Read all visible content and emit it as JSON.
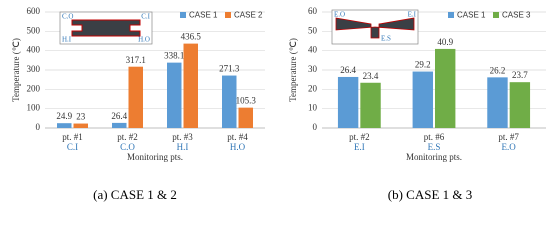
{
  "chart_data": [
    {
      "type": "bar",
      "caption": "(a)  CASE  1  &  2",
      "ylabel": "Temperature (℃)",
      "xlabel": "Monitoring pts.",
      "categories": [
        "pt. #1",
        "pt. #2",
        "pt. #3",
        "pt. #4"
      ],
      "sublabels": [
        "C.I",
        "C.O",
        "H.I",
        "H.O"
      ],
      "inset_labels": [
        "C.O",
        "C.I",
        "H.I",
        "H.O"
      ],
      "series": [
        {
          "name": "CASE 1",
          "color": "#5b9bd5",
          "values": [
            24.9,
            26.4,
            338.1,
            271.3
          ]
        },
        {
          "name": "CASE 2",
          "color": "#ed7d31",
          "values": [
            23,
            317.1,
            436.5,
            105.3
          ]
        }
      ],
      "ylim": [
        0,
        600
      ],
      "yticks": [
        0,
        100,
        200,
        300,
        400,
        500,
        600
      ],
      "grid": true
    },
    {
      "type": "bar",
      "caption": "(b)  CASE  1  &  3",
      "ylabel": "Temperature (℃)",
      "xlabel": "Monitoring pts.",
      "categories": [
        "pt. #2",
        "pt. #6",
        "pt. #7"
      ],
      "sublabels": [
        "E.I",
        "E.S",
        "E.O"
      ],
      "inset_labels": [
        "E.O",
        "E.I",
        "E.S"
      ],
      "series": [
        {
          "name": "CASE 1",
          "color": "#5b9bd5",
          "values": [
            26.4,
            29.2,
            26.2
          ]
        },
        {
          "name": "CASE 3",
          "color": "#70ad47",
          "values": [
            23.4,
            40.9,
            23.7
          ]
        }
      ],
      "ylim": [
        0,
        60
      ],
      "yticks": [
        0,
        10,
        20,
        30,
        40,
        50,
        60
      ],
      "grid": true
    }
  ]
}
